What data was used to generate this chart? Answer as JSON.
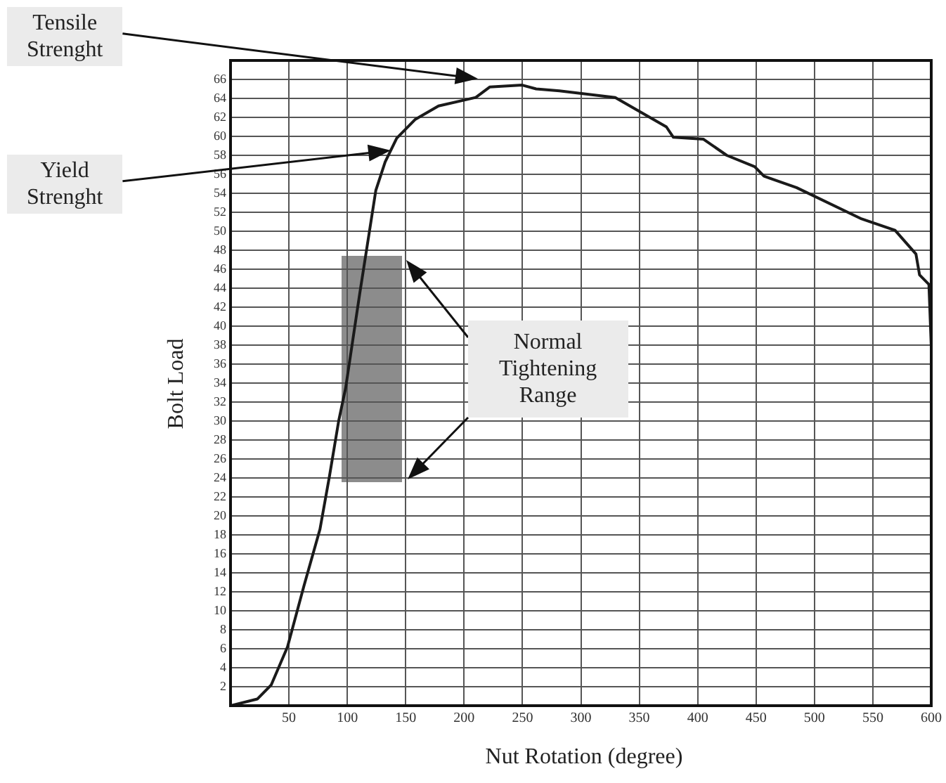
{
  "chart_data": {
    "type": "line",
    "xlabel": "Nut Rotation (degree)",
    "ylabel": "Bolt Load",
    "x": [
      0,
      22.9,
      34.9,
      48.8,
      62.8,
      76.6,
      84.6,
      92.6,
      98.6,
      110.6,
      124.4,
      132.4,
      142.3,
      158.3,
      178.1,
      210,
      221.9,
      249.8,
      261.7,
      281.6,
      329.4,
      373.2,
      379.2,
      405,
      424.9,
      448.8,
      456.8,
      484.6,
      540.4,
      569,
      586.9,
      590,
      598,
      600
    ],
    "series": [
      {
        "color": "#1a1a1a",
        "values": [
          0,
          0.7,
          2.2,
          6.2,
          12.6,
          18.6,
          24.1,
          30,
          33.5,
          43.4,
          54.3,
          57.3,
          59.8,
          61.8,
          63.2,
          64.1,
          65.2,
          65.4,
          65,
          64.8,
          64.1,
          61,
          59.9,
          59.7,
          58,
          56.8,
          55.8,
          54.6,
          51.3,
          50.1,
          47.6,
          45.4,
          44.4,
          37.9
        ]
      }
    ],
    "xlim": [
      0,
      600
    ],
    "xticks": [
      50,
      100,
      150,
      200,
      250,
      300,
      350,
      400,
      450,
      500,
      550,
      600
    ],
    "ylim": [
      0,
      68
    ],
    "yticks": [
      2,
      4,
      6,
      8,
      10,
      12,
      14,
      16,
      18,
      20,
      22,
      24,
      26,
      28,
      30,
      32,
      34,
      36,
      38,
      40,
      42,
      44,
      46,
      48,
      50,
      52,
      54,
      56,
      58,
      60,
      62,
      64,
      66
    ],
    "grid": true,
    "legend": false,
    "marker": "none",
    "line_style": "solid",
    "annotations": [
      "Tensile Strenght",
      "Yield Strenght",
      "Normal Tightening Range"
    ]
  }
}
